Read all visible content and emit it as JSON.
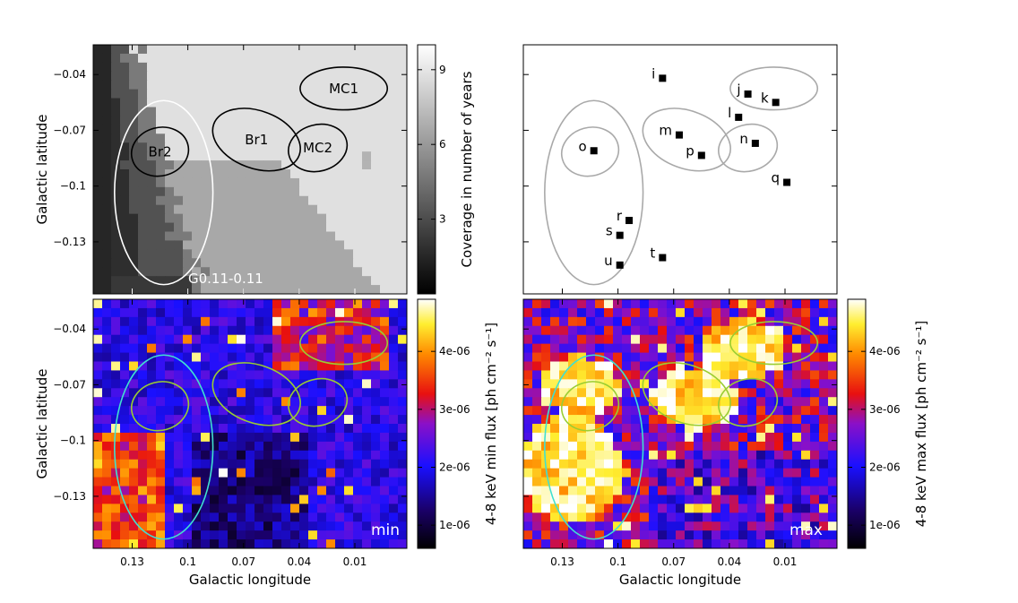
{
  "chart_data": [
    {
      "id": "coverage",
      "type": "heatmap",
      "title": "",
      "xlabel": "",
      "ylabel": "Galactic latitude",
      "xlim": [
        0.151,
        -0.018
      ],
      "ylim": [
        -0.158,
        -0.024
      ],
      "yticks": [
        -0.04,
        -0.07,
        -0.1,
        -0.13
      ],
      "ytick_labels": [
        "−0.04",
        "−0.07",
        "−0.1",
        "−0.13"
      ],
      "xticks": [
        0.13,
        0.1,
        0.07,
        0.04,
        0.01
      ],
      "colorbar": {
        "label": "Coverage in number of years",
        "range": [
          0,
          10
        ],
        "ticks": [
          3,
          6,
          9
        ],
        "tick_labels": [
          "3",
          "6",
          "9"
        ],
        "colormap": "gray"
      },
      "regions": [
        {
          "name": "MC1",
          "cx": 0.016,
          "cy": -0.0475,
          "rx": 0.0235,
          "ry": 0.0115,
          "color": "#000000",
          "label": "MC1"
        },
        {
          "name": "Br1",
          "cx": 0.063,
          "cy": -0.075,
          "rx": 0.0245,
          "ry": 0.0155,
          "angle": 20,
          "color": "#000000",
          "label": "Br1"
        },
        {
          "name": "MC2",
          "cx": 0.03,
          "cy": -0.0795,
          "rx": 0.016,
          "ry": 0.0125,
          "angle": -15,
          "color": "#000000",
          "label": "MC2"
        },
        {
          "name": "Br2",
          "cx": 0.115,
          "cy": -0.0815,
          "rx": 0.0155,
          "ry": 0.013,
          "angle": -15,
          "color": "#000000",
          "label": "Br2"
        },
        {
          "name": "G0.11-0.11",
          "cx": 0.113,
          "cy": -0.1035,
          "rx": 0.0265,
          "ry": 0.0495,
          "color": "#ffffff",
          "label": "G0.11-0.11"
        }
      ]
    },
    {
      "id": "sources",
      "type": "scatter",
      "title": "",
      "xlabel": "",
      "ylabel": "",
      "xlim": [
        0.151,
        -0.018
      ],
      "ylim": [
        -0.158,
        -0.024
      ],
      "points": [
        {
          "label": "i",
          "x": 0.076,
          "y": -0.042
        },
        {
          "label": "j",
          "x": 0.03,
          "y": -0.0505
        },
        {
          "label": "k",
          "x": 0.015,
          "y": -0.055
        },
        {
          "label": "l",
          "x": 0.035,
          "y": -0.063
        },
        {
          "label": "m",
          "x": 0.067,
          "y": -0.0725
        },
        {
          "label": "n",
          "x": 0.026,
          "y": -0.077
        },
        {
          "label": "o",
          "x": 0.113,
          "y": -0.081
        },
        {
          "label": "p",
          "x": 0.055,
          "y": -0.0835
        },
        {
          "label": "q",
          "x": 0.009,
          "y": -0.098
        },
        {
          "label": "r",
          "x": 0.094,
          "y": -0.1185
        },
        {
          "label": "s",
          "x": 0.099,
          "y": -0.1265
        },
        {
          "label": "t",
          "x": 0.076,
          "y": -0.1385
        },
        {
          "label": "u",
          "x": 0.099,
          "y": -0.1425
        }
      ],
      "regions": [
        "MC1",
        "Br1",
        "MC2",
        "Br2",
        "G0.11-0.11"
      ],
      "region_color": "#a9a9a9"
    },
    {
      "id": "minflux",
      "type": "heatmap",
      "title": "",
      "xlabel": "Galactic longitude",
      "ylabel": "Galactic latitude",
      "xlim": [
        0.151,
        -0.018
      ],
      "ylim": [
        -0.158,
        -0.024
      ],
      "xticks": [
        0.13,
        0.1,
        0.07,
        0.04,
        0.01
      ],
      "xtick_labels": [
        "0.13",
        "0.1",
        "0.07",
        "0.04",
        "0.01"
      ],
      "yticks": [
        -0.04,
        -0.07,
        -0.1,
        -0.13
      ],
      "ytick_labels": [
        "−0.04",
        "−0.07",
        "−0.1",
        "−0.13"
      ],
      "annotation": "min",
      "colorbar": {
        "label": "4-8 keV min flux [ph cm⁻² s⁻¹]",
        "range": [
          6e-07,
          4.9e-06
        ],
        "ticks": [
          1e-06,
          2e-06,
          3e-06,
          4e-06
        ],
        "tick_labels": [
          "1e-06",
          "2e-06",
          "3e-06",
          "4e-06"
        ],
        "colormap": "gnuplot2"
      },
      "region_colors": {
        "outer": "#40e0d0",
        "inner": "#9acd32"
      }
    },
    {
      "id": "maxflux",
      "type": "heatmap",
      "title": "",
      "xlabel": "Galactic longitude",
      "ylabel": "",
      "xlim": [
        0.151,
        -0.018
      ],
      "ylim": [
        -0.158,
        -0.024
      ],
      "xticks": [
        0.13,
        0.1,
        0.07,
        0.04,
        0.01
      ],
      "xtick_labels": [
        "0.13",
        "0.1",
        "0.07",
        "0.04",
        "0.01"
      ],
      "annotation": "max",
      "colorbar": {
        "label": "4-8 keV max flux [ph cm⁻² s⁻¹]",
        "range": [
          6e-07,
          4.9e-06
        ],
        "ticks": [
          1e-06,
          2e-06,
          3e-06,
          4e-06
        ],
        "tick_labels": [
          "1e-06",
          "2e-06",
          "3e-06",
          "4e-06"
        ],
        "colormap": "gnuplot2"
      },
      "region_colors": {
        "outer": "#40e0d0",
        "inner": "#9acd32"
      }
    }
  ]
}
